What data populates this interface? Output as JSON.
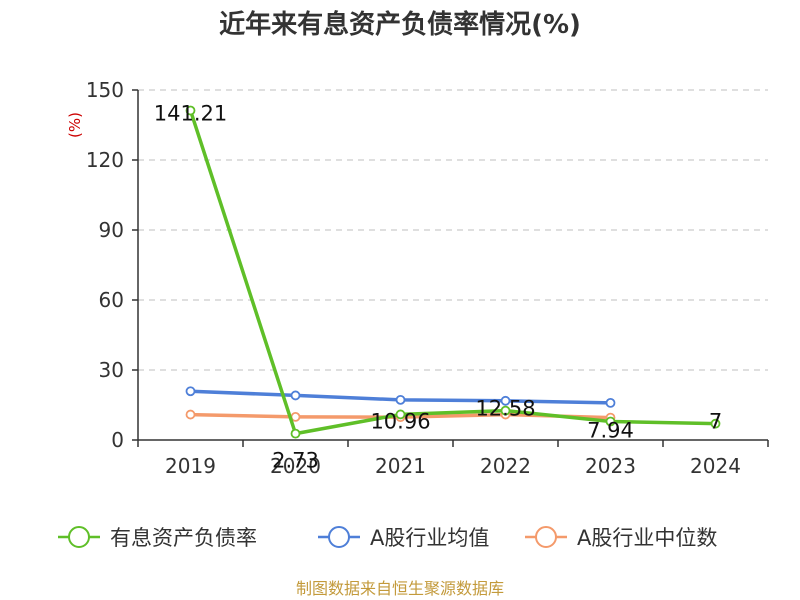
{
  "chart_data": {
    "type": "line",
    "title": "近年来有息资产负债率情况(%)",
    "xlabel": "",
    "ylabel": "(%)",
    "categories": [
      "2019",
      "2020",
      "2021",
      "2022",
      "2023",
      "2024"
    ],
    "ylim": [
      0,
      150
    ],
    "yticks": [
      "0",
      "30",
      "60",
      "90",
      "120",
      "150"
    ],
    "grid": true,
    "legend_position": "bottom",
    "series": [
      {
        "name": "有息资产负债率",
        "color": "#5fbf28",
        "values": [
          141.21,
          2.73,
          10.96,
          12.58,
          7.94,
          7
        ],
        "labels": [
          "141.21",
          "2.73",
          "10.96",
          "12.58",
          "7.94",
          "7"
        ]
      },
      {
        "name": "A股行业均值",
        "color": "#4e7fd8",
        "values": [
          20.9,
          19.1,
          17.2,
          16.8,
          15.9,
          null
        ],
        "labels": []
      },
      {
        "name": "A股行业中位数",
        "color": "#f49a6b",
        "values": [
          10.9,
          9.9,
          9.8,
          10.9,
          9.6,
          null
        ],
        "labels": []
      }
    ],
    "source": "制图数据来自恒生聚源数据库"
  }
}
